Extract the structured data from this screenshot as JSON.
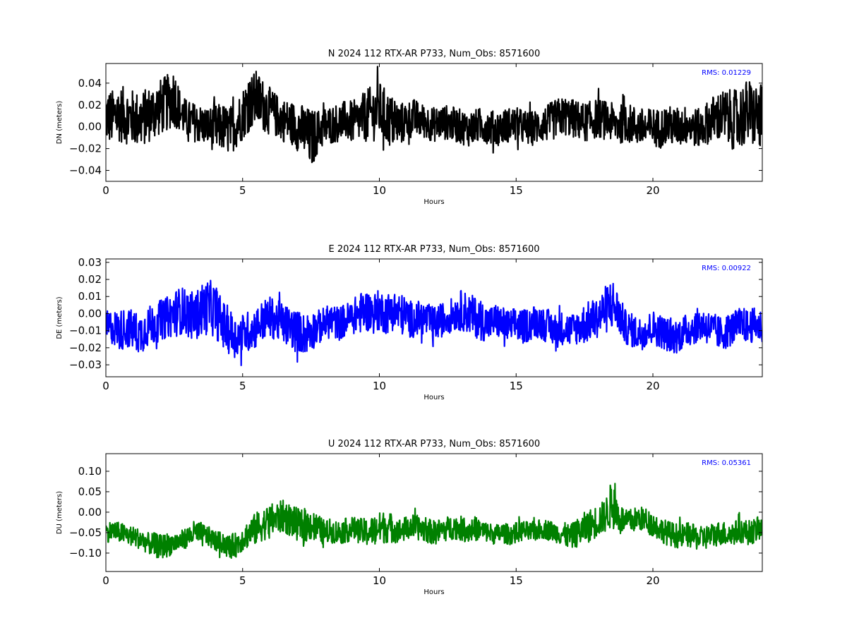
{
  "chart_data": [
    {
      "type": "line",
      "title": "N 2024 112 RTX-AR  P733, Num_Obs: 8571600",
      "xlabel": "Hours",
      "ylabel": "DN (meters)",
      "xlim": [
        0,
        24
      ],
      "ylim": [
        -0.05,
        0.058
      ],
      "xticks": [
        0,
        5,
        10,
        15,
        20
      ],
      "yticks": [
        -0.04,
        -0.02,
        0.0,
        0.02,
        0.04
      ],
      "ytick_labels": [
        "−0.04",
        "−0.02",
        "0.00",
        "0.02",
        "0.04"
      ],
      "annotation": "RMS:  0.01229",
      "color": "#000000",
      "annotation_color": "#0000ff",
      "series": [
        {
          "x": [
            0,
            0.25,
            0.5,
            0.75,
            1,
            1.25,
            1.5,
            1.75,
            2,
            2.25,
            2.5,
            2.75,
            3,
            3.25,
            3.5,
            3.75,
            4,
            4.25,
            4.5,
            4.75,
            5,
            5.25,
            5.5,
            5.75,
            6,
            6.25,
            6.5,
            6.75,
            7,
            7.25,
            7.5,
            7.75,
            8,
            8.25,
            8.5,
            8.75,
            9,
            9.25,
            9.5,
            9.75,
            10,
            10.25,
            10.5,
            10.75,
            11,
            11.25,
            11.5,
            11.75,
            12,
            12.25,
            12.5,
            12.75,
            13,
            13.25,
            13.5,
            13.75,
            14,
            14.25,
            14.5,
            14.75,
            15,
            15.25,
            15.5,
            15.75,
            16,
            16.25,
            16.5,
            16.75,
            17,
            17.25,
            17.5,
            17.75,
            18,
            18.25,
            18.5,
            18.75,
            19,
            19.25,
            19.5,
            19.75,
            20,
            20.25,
            20.5,
            20.75,
            21,
            21.25,
            21.5,
            21.75,
            22,
            22.25,
            22.5,
            22.75,
            23,
            23.25,
            23.5,
            23.75,
            24
          ],
          "mean": [
            0.01,
            0.008,
            0.012,
            0.01,
            0.008,
            0.006,
            0.01,
            0.014,
            0.018,
            0.022,
            0.028,
            0.012,
            0.006,
            0.004,
            0.002,
            0.0,
            -0.002,
            0.0,
            -0.004,
            0.002,
            0.012,
            0.022,
            0.026,
            0.02,
            0.014,
            0.01,
            0.006,
            0.004,
            0.0,
            -0.004,
            -0.012,
            -0.004,
            0.0,
            0.002,
            0.004,
            0.006,
            0.004,
            0.006,
            0.01,
            0.012,
            0.016,
            0.008,
            0.004,
            0.002,
            0.006,
            0.008,
            0.006,
            0.004,
            0.002,
            0.004,
            0.004,
            0.002,
            0.0,
            -0.002,
            0.0,
            0.002,
            0.0,
            -0.002,
            0.0,
            0.002,
            0.002,
            0.0,
            -0.002,
            0.0,
            0.002,
            0.004,
            0.008,
            0.01,
            0.008,
            0.006,
            0.004,
            0.006,
            0.008,
            0.006,
            0.004,
            0.002,
            0.004,
            0.002,
            0.0,
            -0.002,
            0.0,
            -0.002,
            0.002,
            0.0,
            0.0,
            0.002,
            0.0,
            -0.002,
            0.004,
            0.008,
            0.01,
            0.008,
            0.006,
            0.01,
            0.014,
            0.01,
            0.008
          ],
          "envelope": [
            0.026,
            0.026,
            0.026,
            0.026,
            0.026,
            0.026,
            0.026,
            0.026,
            0.026,
            0.026,
            0.028,
            0.018,
            0.018,
            0.018,
            0.018,
            0.018,
            0.022,
            0.022,
            0.022,
            0.022,
            0.024,
            0.026,
            0.026,
            0.024,
            0.022,
            0.02,
            0.02,
            0.02,
            0.022,
            0.024,
            0.028,
            0.02,
            0.018,
            0.018,
            0.018,
            0.018,
            0.02,
            0.02,
            0.024,
            0.026,
            0.026,
            0.026,
            0.024,
            0.02,
            0.018,
            0.018,
            0.016,
            0.016,
            0.016,
            0.016,
            0.016,
            0.016,
            0.016,
            0.016,
            0.016,
            0.016,
            0.016,
            0.016,
            0.016,
            0.016,
            0.016,
            0.016,
            0.016,
            0.016,
            0.016,
            0.018,
            0.018,
            0.018,
            0.018,
            0.018,
            0.018,
            0.018,
            0.018,
            0.018,
            0.018,
            0.018,
            0.018,
            0.018,
            0.018,
            0.018,
            0.018,
            0.018,
            0.018,
            0.018,
            0.018,
            0.018,
            0.018,
            0.018,
            0.02,
            0.022,
            0.024,
            0.026,
            0.028,
            0.03,
            0.03,
            0.03,
            0.03
          ]
        }
      ]
    },
    {
      "type": "line",
      "title": "E 2024 112 RTX-AR  P733, Num_Obs: 8571600",
      "xlabel": "Hours",
      "ylabel": "DE (meters)",
      "xlim": [
        0,
        24
      ],
      "ylim": [
        -0.037,
        0.032
      ],
      "xticks": [
        0,
        5,
        10,
        15,
        20
      ],
      "yticks": [
        -0.03,
        -0.02,
        -0.01,
        0.0,
        0.01,
        0.02,
        0.03
      ],
      "ytick_labels": [
        "−0.03",
        "−0.02",
        "−0.01",
        "0.00",
        "0.01",
        "0.02",
        "0.03"
      ],
      "annotation": "RMS:  0.00922",
      "color": "#0000ff",
      "annotation_color": "#0000ff",
      "series": [
        {
          "x": [
            0,
            0.25,
            0.5,
            0.75,
            1,
            1.25,
            1.5,
            1.75,
            2,
            2.25,
            2.5,
            2.75,
            3,
            3.25,
            3.5,
            3.75,
            4,
            4.25,
            4.5,
            4.75,
            5,
            5.25,
            5.5,
            5.75,
            6,
            6.25,
            6.5,
            6.75,
            7,
            7.25,
            7.5,
            7.75,
            8,
            8.25,
            8.5,
            8.75,
            9,
            9.25,
            9.5,
            9.75,
            10,
            10.25,
            10.5,
            10.75,
            11,
            11.25,
            11.5,
            11.75,
            12,
            12.25,
            12.5,
            12.75,
            13,
            13.25,
            13.5,
            13.75,
            14,
            14.25,
            14.5,
            14.75,
            15,
            15.25,
            15.5,
            15.75,
            16,
            16.25,
            16.5,
            16.75,
            17,
            17.25,
            17.5,
            17.75,
            18,
            18.25,
            18.5,
            18.75,
            19,
            19.25,
            19.5,
            19.75,
            20,
            20.25,
            20.5,
            20.75,
            21,
            21.25,
            21.5,
            21.75,
            22,
            22.25,
            22.5,
            22.75,
            23,
            23.25,
            23.5,
            23.75,
            24
          ],
          "mean": [
            -0.008,
            -0.008,
            -0.01,
            -0.008,
            -0.01,
            -0.012,
            -0.008,
            -0.006,
            -0.004,
            -0.002,
            0.0,
            0.002,
            0.0,
            -0.002,
            0.002,
            0.004,
            0.002,
            -0.006,
            -0.01,
            -0.014,
            -0.012,
            -0.01,
            -0.008,
            -0.004,
            -0.002,
            -0.004,
            -0.006,
            -0.008,
            -0.01,
            -0.012,
            -0.01,
            -0.008,
            -0.006,
            -0.004,
            -0.006,
            -0.004,
            -0.002,
            0.0,
            0.002,
            0.0,
            0.002,
            0.0,
            0.002,
            0.0,
            -0.002,
            -0.004,
            -0.002,
            -0.004,
            -0.006,
            -0.004,
            -0.002,
            0.0,
            0.002,
            0.0,
            -0.002,
            -0.004,
            -0.006,
            -0.004,
            -0.006,
            -0.008,
            -0.006,
            -0.008,
            -0.006,
            -0.004,
            -0.006,
            -0.008,
            -0.01,
            -0.008,
            -0.01,
            -0.008,
            -0.006,
            -0.004,
            -0.002,
            0.002,
            0.006,
            0.0,
            -0.008,
            -0.01,
            -0.012,
            -0.01,
            -0.008,
            -0.01,
            -0.012,
            -0.014,
            -0.012,
            -0.01,
            -0.008,
            -0.006,
            -0.008,
            -0.01,
            -0.012,
            -0.01,
            -0.008,
            -0.006,
            -0.008,
            -0.006,
            -0.008
          ],
          "envelope": [
            0.01,
            0.01,
            0.012,
            0.012,
            0.012,
            0.012,
            0.012,
            0.012,
            0.012,
            0.012,
            0.014,
            0.014,
            0.014,
            0.014,
            0.016,
            0.016,
            0.016,
            0.014,
            0.014,
            0.012,
            0.012,
            0.012,
            0.012,
            0.012,
            0.012,
            0.012,
            0.012,
            0.012,
            0.012,
            0.012,
            0.012,
            0.01,
            0.01,
            0.01,
            0.01,
            0.01,
            0.01,
            0.012,
            0.012,
            0.012,
            0.012,
            0.012,
            0.012,
            0.012,
            0.012,
            0.01,
            0.01,
            0.01,
            0.01,
            0.01,
            0.01,
            0.01,
            0.012,
            0.012,
            0.012,
            0.012,
            0.01,
            0.01,
            0.01,
            0.01,
            0.01,
            0.01,
            0.01,
            0.01,
            0.01,
            0.01,
            0.01,
            0.01,
            0.01,
            0.01,
            0.012,
            0.012,
            0.012,
            0.014,
            0.016,
            0.012,
            0.01,
            0.01,
            0.01,
            0.01,
            0.01,
            0.01,
            0.01,
            0.01,
            0.01,
            0.01,
            0.01,
            0.01,
            0.01,
            0.01,
            0.01,
            0.01,
            0.01,
            0.01,
            0.01,
            0.01,
            0.01
          ]
        }
      ]
    },
    {
      "type": "line",
      "title": "U 2024 112 RTX-AR  P733, Num_Obs: 8571600",
      "xlabel": "Hours",
      "ylabel": "DU (meters)",
      "xlim": [
        0,
        24
      ],
      "ylim": [
        -0.145,
        0.143
      ],
      "xticks": [
        0,
        5,
        10,
        15,
        20
      ],
      "yticks": [
        -0.1,
        -0.05,
        0.0,
        0.05,
        0.1
      ],
      "ytick_labels": [
        "−0.10",
        "−0.05",
        "0.00",
        "0.05",
        "0.10"
      ],
      "annotation": "RMS:  0.05361",
      "color": "#008000",
      "annotation_color": "#0000ff",
      "series": [
        {
          "x": [
            0,
            0.25,
            0.5,
            0.75,
            1,
            1.25,
            1.5,
            1.75,
            2,
            2.25,
            2.5,
            2.75,
            3,
            3.25,
            3.5,
            3.75,
            4,
            4.25,
            4.5,
            4.75,
            5,
            5.25,
            5.5,
            5.75,
            6,
            6.25,
            6.5,
            6.75,
            7,
            7.25,
            7.5,
            7.75,
            8,
            8.25,
            8.5,
            8.75,
            9,
            9.25,
            9.5,
            9.75,
            10,
            10.25,
            10.5,
            10.75,
            11,
            11.25,
            11.5,
            11.75,
            12,
            12.25,
            12.5,
            12.75,
            13,
            13.25,
            13.5,
            13.75,
            14,
            14.25,
            14.5,
            14.75,
            15,
            15.25,
            15.5,
            15.75,
            16,
            16.25,
            16.5,
            16.75,
            17,
            17.25,
            17.5,
            17.75,
            18,
            18.25,
            18.5,
            18.75,
            19,
            19.25,
            19.5,
            19.75,
            20,
            20.25,
            20.5,
            20.75,
            21,
            21.25,
            21.5,
            21.75,
            22,
            22.25,
            22.5,
            22.75,
            23,
            23.25,
            23.5,
            23.75,
            24
          ],
          "mean": [
            -0.05,
            -0.045,
            -0.05,
            -0.055,
            -0.06,
            -0.065,
            -0.075,
            -0.08,
            -0.085,
            -0.08,
            -0.075,
            -0.07,
            -0.06,
            -0.05,
            -0.055,
            -0.06,
            -0.07,
            -0.075,
            -0.085,
            -0.08,
            -0.065,
            -0.05,
            -0.04,
            -0.03,
            -0.02,
            -0.015,
            -0.01,
            -0.02,
            -0.03,
            -0.035,
            -0.03,
            -0.04,
            -0.05,
            -0.045,
            -0.05,
            -0.045,
            -0.04,
            -0.045,
            -0.05,
            -0.045,
            -0.04,
            -0.035,
            -0.04,
            -0.045,
            -0.04,
            -0.035,
            -0.04,
            -0.045,
            -0.05,
            -0.045,
            -0.04,
            -0.035,
            -0.04,
            -0.045,
            -0.04,
            -0.045,
            -0.05,
            -0.055,
            -0.05,
            -0.055,
            -0.05,
            -0.045,
            -0.05,
            -0.045,
            -0.04,
            -0.045,
            -0.05,
            -0.055,
            -0.06,
            -0.05,
            -0.04,
            -0.03,
            -0.02,
            -0.01,
            0.02,
            -0.01,
            -0.025,
            -0.02,
            -0.015,
            -0.02,
            -0.03,
            -0.04,
            -0.05,
            -0.055,
            -0.06,
            -0.055,
            -0.06,
            -0.065,
            -0.06,
            -0.055,
            -0.05,
            -0.055,
            -0.05,
            -0.045,
            -0.05,
            -0.045,
            -0.04
          ],
          "envelope": [
            0.025,
            0.025,
            0.025,
            0.025,
            0.025,
            0.025,
            0.025,
            0.03,
            0.03,
            0.03,
            0.025,
            0.025,
            0.025,
            0.03,
            0.03,
            0.025,
            0.025,
            0.025,
            0.03,
            0.03,
            0.03,
            0.035,
            0.04,
            0.04,
            0.04,
            0.04,
            0.04,
            0.04,
            0.04,
            0.04,
            0.04,
            0.035,
            0.03,
            0.03,
            0.03,
            0.03,
            0.03,
            0.03,
            0.035,
            0.035,
            0.04,
            0.04,
            0.035,
            0.03,
            0.03,
            0.03,
            0.03,
            0.03,
            0.03,
            0.03,
            0.03,
            0.03,
            0.03,
            0.03,
            0.03,
            0.025,
            0.025,
            0.025,
            0.025,
            0.025,
            0.025,
            0.025,
            0.025,
            0.025,
            0.025,
            0.025,
            0.025,
            0.03,
            0.03,
            0.035,
            0.04,
            0.04,
            0.04,
            0.04,
            0.06,
            0.04,
            0.03,
            0.03,
            0.03,
            0.03,
            0.03,
            0.03,
            0.03,
            0.03,
            0.03,
            0.03,
            0.03,
            0.03,
            0.03,
            0.03,
            0.03,
            0.03,
            0.03,
            0.03,
            0.03,
            0.03,
            0.03
          ]
        }
      ]
    }
  ]
}
